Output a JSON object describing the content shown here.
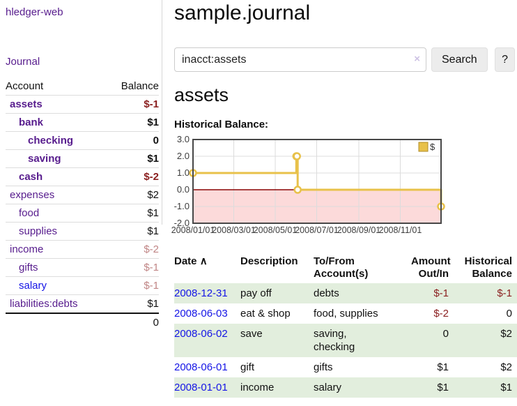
{
  "brand": "hledger-web",
  "nav": {
    "journal": "Journal"
  },
  "sidebar": {
    "headers": {
      "account": "Account",
      "balance": "Balance"
    },
    "accounts": [
      {
        "name": "assets",
        "balance": "$-1",
        "indent": 0,
        "bold": true,
        "balance_tone": "neg-strong",
        "link_tone": "visited"
      },
      {
        "name": "bank",
        "balance": "$1",
        "indent": 1,
        "bold": true,
        "balance_tone": "pos",
        "link_tone": "visited"
      },
      {
        "name": "checking",
        "balance": "0",
        "indent": 2,
        "bold": true,
        "balance_tone": "pos",
        "link_tone": "visited"
      },
      {
        "name": "saving",
        "balance": "$1",
        "indent": 2,
        "bold": true,
        "balance_tone": "pos",
        "link_tone": "visited"
      },
      {
        "name": "cash",
        "balance": "$-2",
        "indent": 1,
        "bold": true,
        "balance_tone": "neg-strong",
        "link_tone": "visited"
      },
      {
        "name": "expenses",
        "balance": "$2",
        "indent": 0,
        "bold": false,
        "balance_tone": "pos",
        "link_tone": "visited"
      },
      {
        "name": "food",
        "balance": "$1",
        "indent": 1,
        "bold": false,
        "balance_tone": "pos",
        "link_tone": "visited"
      },
      {
        "name": "supplies",
        "balance": "$1",
        "indent": 1,
        "bold": false,
        "balance_tone": "pos",
        "link_tone": "visited"
      },
      {
        "name": "income",
        "balance": "$-2",
        "indent": 0,
        "bold": false,
        "balance_tone": "neg-weak",
        "link_tone": "visited"
      },
      {
        "name": "gifts",
        "balance": "$-1",
        "indent": 1,
        "bold": false,
        "balance_tone": "neg-weak",
        "link_tone": "visited"
      },
      {
        "name": "salary",
        "balance": "$-1",
        "indent": 1,
        "bold": false,
        "balance_tone": "neg-weak",
        "link_tone": "unvisited"
      },
      {
        "name": "liabilities:debts",
        "balance": "$1",
        "indent": 0,
        "bold": false,
        "balance_tone": "pos",
        "link_tone": "visited"
      }
    ],
    "total": "0"
  },
  "main": {
    "title": "sample.journal",
    "search": {
      "value": "inacct:assets",
      "clear": "×",
      "submit": "Search",
      "help": "?"
    },
    "account_title": "assets",
    "chart_title": "Historical Balance:"
  },
  "chart_data": {
    "type": "line",
    "mode": "step",
    "title": "Historical Balance",
    "series": [
      {
        "name": "$",
        "color": "#e8c14a",
        "points": [
          [
            "2008-01-01",
            1
          ],
          [
            "2008-06-01",
            2
          ],
          [
            "2008-06-02",
            2
          ],
          [
            "2008-06-03",
            0
          ],
          [
            "2008-12-31",
            -1
          ]
        ]
      }
    ],
    "x_range": [
      "2008-01-01",
      "2008-12-31"
    ],
    "ylim": [
      -2,
      3
    ],
    "y_ticks": [
      "3.0",
      "2.0",
      "1.0",
      "0.0",
      "-1.0",
      "-2.0"
    ],
    "x_ticks": [
      {
        "date": "2008-01-01",
        "label": "2008/01/01"
      },
      {
        "date": "2008-03-01",
        "label": "2008/03/01"
      },
      {
        "date": "2008-05-01",
        "label": "2008/05/01"
      },
      {
        "date": "2008-07-01",
        "label": "2008/07/01"
      },
      {
        "date": "2008-09-01",
        "label": "2008/09/01"
      },
      {
        "date": "2008-11-01",
        "label": "2008/11/01"
      }
    ],
    "grid": true,
    "negative_fill": "#fcdada",
    "zero_line_color": "#8b0000",
    "legend": {
      "label": "$",
      "position": "top-right"
    }
  },
  "register": {
    "headers": {
      "date": "Date",
      "sort_icon": "∧",
      "description": "Description",
      "accounts": "To/From Account(s)",
      "amount": "Amount Out/In",
      "balance": "Historical Balance"
    },
    "rows": [
      {
        "date": "2008-12-31",
        "description": "pay off",
        "accounts": "debts",
        "amount": "$-1",
        "balance": "$-1",
        "shaded": true
      },
      {
        "date": "2008-06-03",
        "description": "eat & shop",
        "accounts": "food, supplies",
        "amount": "$-2",
        "balance": "0",
        "shaded": false
      },
      {
        "date": "2008-06-02",
        "description": "save",
        "accounts": "saving,\nchecking",
        "amount": "0",
        "balance": "$2",
        "shaded": true
      },
      {
        "date": "2008-06-01",
        "description": "gift",
        "accounts": "gifts",
        "amount": "$1",
        "balance": "$2",
        "shaded": false
      },
      {
        "date": "2008-01-01",
        "description": "income",
        "accounts": "salary",
        "amount": "$1",
        "balance": "$1",
        "shaded": true
      }
    ]
  },
  "colors": {
    "link_visited_purple": "#571c8d",
    "link_unvisited_blue": "#1414e6",
    "negative_strong_red": "#8b2020",
    "negative_weak_red": "#c08585",
    "row_shade_green": "#e2eedd",
    "chart_line_gold": "#e8c14a",
    "chart_negative_pink": "#fcdada",
    "chart_zero_line": "#8b0000"
  }
}
